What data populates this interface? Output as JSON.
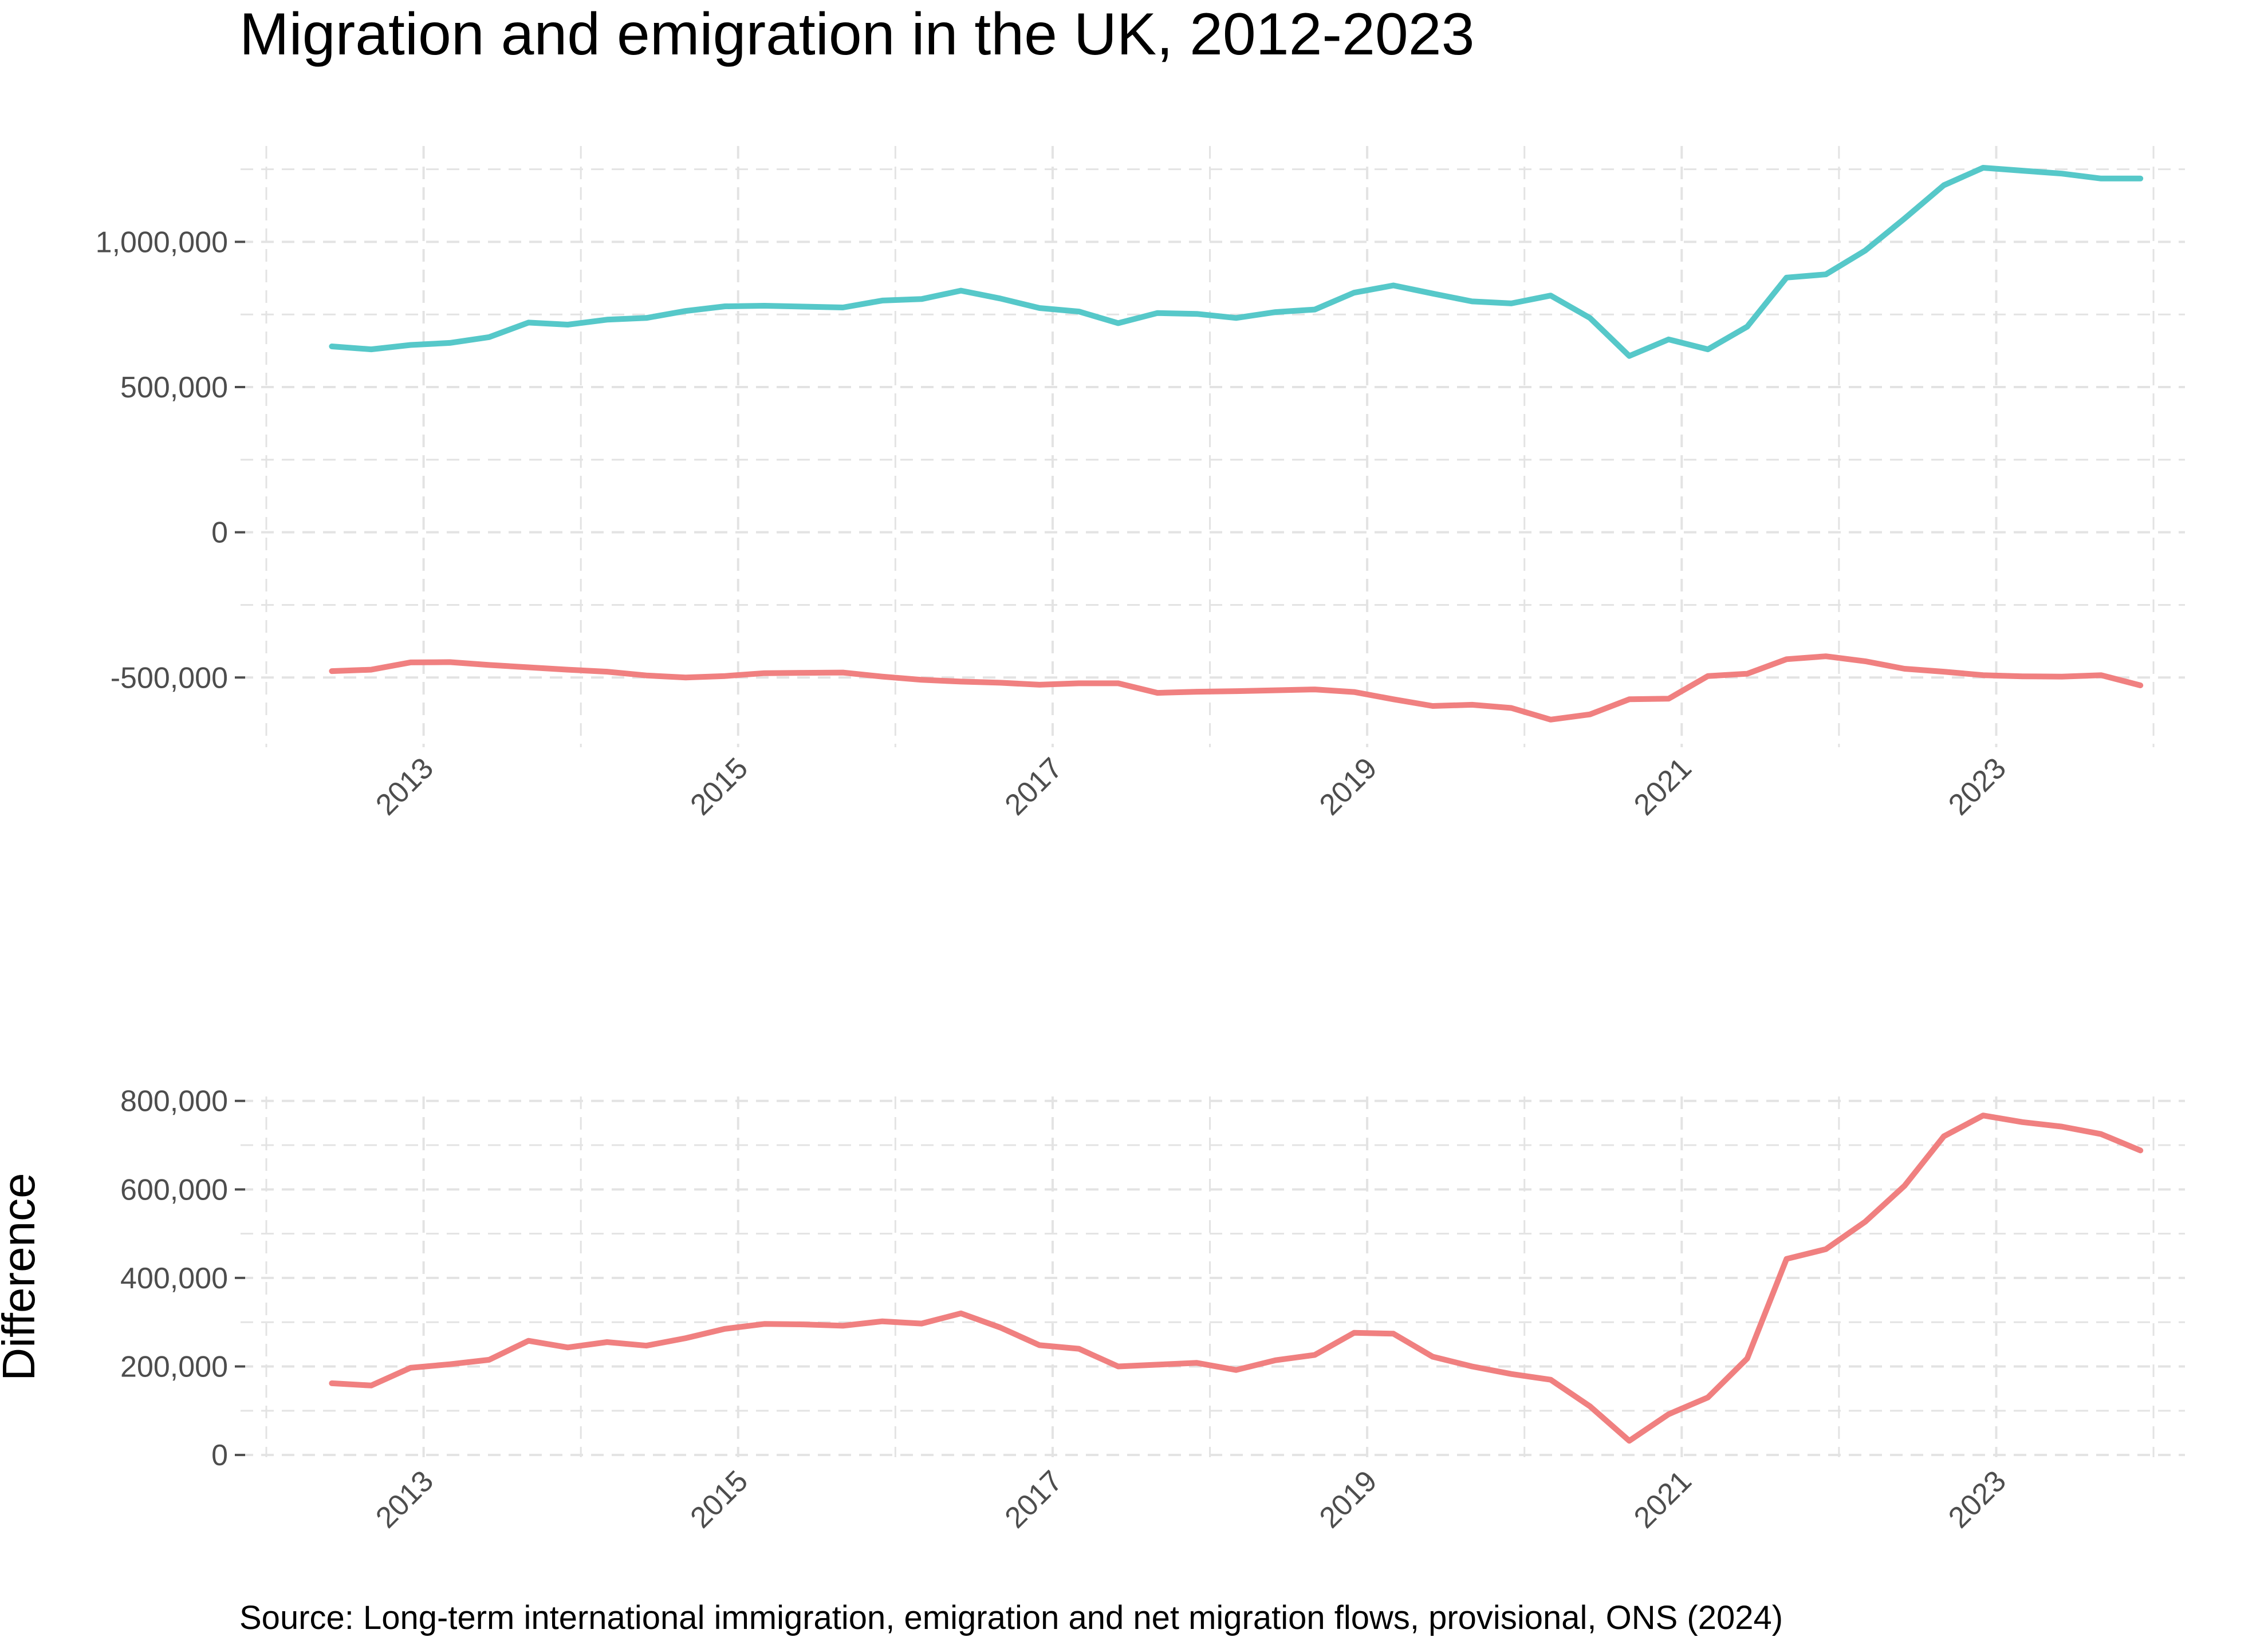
{
  "title": "Migration and emigration in the UK, 2012-2023",
  "caption": "Source: Long-term international immigration, emigration and net migration flows, provisional, ONS (2024)",
  "colors": {
    "immigration": "#56C8C9",
    "emigration": "#F08080",
    "difference": "#F08080",
    "grid": "#E3E3E3",
    "tick_text": "#4D4D4D"
  },
  "chart_data": [
    {
      "type": "line",
      "title": "",
      "xlabel": "",
      "ylabel": "",
      "x_ticks": [
        "2013",
        "2015",
        "2017",
        "2019",
        "2021",
        "2023"
      ],
      "y_ticks": [
        "-500,000",
        "0",
        "500,000",
        "1,000,000"
      ],
      "ylim": [
        -740000,
        1330000
      ],
      "grid": true,
      "legend": "none",
      "x": [
        "2012-06",
        "2012-09",
        "2012-12",
        "2013-03",
        "2013-06",
        "2013-09",
        "2013-12",
        "2014-03",
        "2014-06",
        "2014-09",
        "2014-12",
        "2015-03",
        "2015-06",
        "2015-09",
        "2015-12",
        "2016-03",
        "2016-06",
        "2016-09",
        "2016-12",
        "2017-03",
        "2017-06",
        "2017-09",
        "2017-12",
        "2018-03",
        "2018-06",
        "2018-09",
        "2018-12",
        "2019-03",
        "2019-06",
        "2019-09",
        "2019-12",
        "2020-03",
        "2020-06",
        "2020-09",
        "2020-12",
        "2021-03",
        "2021-06",
        "2021-09",
        "2021-12",
        "2022-03",
        "2022-06",
        "2022-09",
        "2022-12",
        "2023-03",
        "2023-06",
        "2023-09",
        "2023-12"
      ],
      "series": [
        {
          "values": [
            640000,
            630000,
            645000,
            652000,
            672000,
            722000,
            715000,
            732000,
            738000,
            762000,
            778000,
            780000,
            777000,
            774000,
            798000,
            803000,
            832000,
            805000,
            772000,
            760000,
            720000,
            755000,
            752000,
            738000,
            758000,
            767000,
            825000,
            850000,
            822000,
            795000,
            788000,
            815000,
            738000,
            607000,
            664000,
            630000,
            708000,
            877000,
            888000,
            970000,
            1080000,
            1195000,
            1255000,
            1245000,
            1235000,
            1218000,
            1218000
          ]
        },
        {
          "values": [
            -478000,
            -473000,
            -448000,
            -447000,
            -457000,
            -465000,
            -473000,
            -480000,
            -493000,
            -500000,
            -495000,
            -485000,
            -484000,
            -483000,
            -497000,
            -508000,
            -514000,
            -518000,
            -525000,
            -520000,
            -520000,
            -553000,
            -549000,
            -547000,
            -544000,
            -541000,
            -550000,
            -575000,
            -598000,
            -594000,
            -605000,
            -645000,
            -627000,
            -575000,
            -573000,
            -495000,
            -487000,
            -437000,
            -427000,
            -444000,
            -470000,
            -480000,
            -492000,
            -496000,
            -497000,
            -492000,
            -527000
          ]
        }
      ]
    },
    {
      "type": "line",
      "title": "",
      "xlabel": "",
      "ylabel": "Difference",
      "x_ticks": [
        "2013",
        "2015",
        "2017",
        "2019",
        "2021",
        "2023"
      ],
      "y_ticks": [
        "0",
        "200,000",
        "400,000",
        "600,000",
        "800,000"
      ],
      "ylim": [
        -5000,
        810000
      ],
      "grid": true,
      "legend": "none",
      "x": [
        "2012-06",
        "2012-09",
        "2012-12",
        "2013-03",
        "2013-06",
        "2013-09",
        "2013-12",
        "2014-03",
        "2014-06",
        "2014-09",
        "2014-12",
        "2015-03",
        "2015-06",
        "2015-09",
        "2015-12",
        "2016-03",
        "2016-06",
        "2016-09",
        "2016-12",
        "2017-03",
        "2017-06",
        "2017-09",
        "2017-12",
        "2018-03",
        "2018-06",
        "2018-09",
        "2018-12",
        "2019-03",
        "2019-06",
        "2019-09",
        "2019-12",
        "2020-03",
        "2020-06",
        "2020-09",
        "2020-12",
        "2021-03",
        "2021-06",
        "2021-09",
        "2021-12",
        "2022-03",
        "2022-06",
        "2022-09",
        "2022-12",
        "2023-03",
        "2023-06",
        "2023-09",
        "2023-12"
      ],
      "series": [
        {
          "values": [
            162000,
            157000,
            197000,
            205000,
            215000,
            258000,
            243000,
            255000,
            247000,
            264000,
            285000,
            296000,
            295000,
            292000,
            302000,
            297000,
            320000,
            288000,
            248000,
            240000,
            200000,
            204000,
            208000,
            192000,
            214000,
            226000,
            276000,
            274000,
            222000,
            200000,
            183000,
            170000,
            110000,
            32000,
            92000,
            130000,
            218000,
            443000,
            465000,
            527000,
            608000,
            720000,
            767000,
            752000,
            742000,
            725000,
            688000
          ]
        }
      ]
    }
  ]
}
